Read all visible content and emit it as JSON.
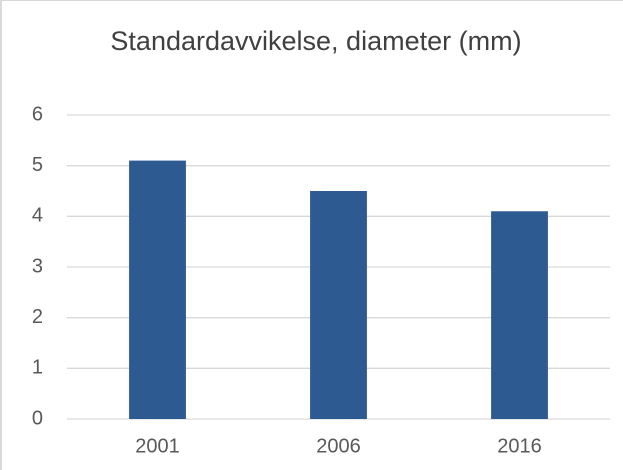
{
  "chart_data": {
    "type": "bar",
    "title": "Standardavvikelse, diameter (mm)",
    "categories": [
      "2001",
      "2006",
      "2016"
    ],
    "values": [
      5.1,
      4.5,
      4.1
    ],
    "color": "#2e5a92",
    "ylim": [
      0,
      6
    ],
    "yticks": [
      0,
      1,
      2,
      3,
      4,
      5,
      6
    ],
    "grid": true
  }
}
